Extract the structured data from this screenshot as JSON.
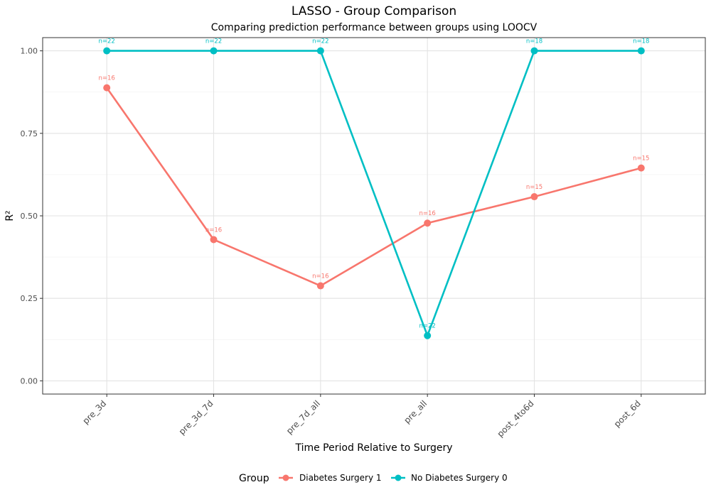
{
  "chart_data": {
    "type": "line",
    "title": "LASSO - Group Comparison",
    "subtitle": "Comparing prediction performance between groups using LOOCV",
    "xlabel": "Time Period Relative to Surgery",
    "ylabel": "R²",
    "categories": [
      "pre_3d",
      "pre_3d_7d",
      "pre_7d_all",
      "pre_all",
      "post_4to6d",
      "post_6d"
    ],
    "ylim": [
      -0.04,
      1.04
    ],
    "yticks": [
      0.0,
      0.25,
      0.5,
      0.75,
      1.0
    ],
    "ytick_labels": [
      "0.00",
      "0.25",
      "0.50",
      "0.75",
      "1.00"
    ],
    "grid": true,
    "legend": {
      "title": "Group",
      "position": "bottom"
    },
    "series": [
      {
        "name": "Diabetes Surgery 1",
        "color": "#F8766D",
        "values": [
          0.888,
          0.428,
          0.288,
          0.478,
          0.558,
          0.645
        ],
        "labels": [
          "n=16",
          "n=16",
          "n=16",
          "n=16",
          "n=15",
          "n=15"
        ]
      },
      {
        "name": "No Diabetes Surgery 0",
        "color": "#00BFC4",
        "values": [
          1.0,
          1.0,
          1.0,
          0.137,
          1.0,
          1.0
        ],
        "labels": [
          "n=22",
          "n=22",
          "n=22",
          "n=22",
          "n=18",
          "n=18"
        ]
      }
    ]
  }
}
